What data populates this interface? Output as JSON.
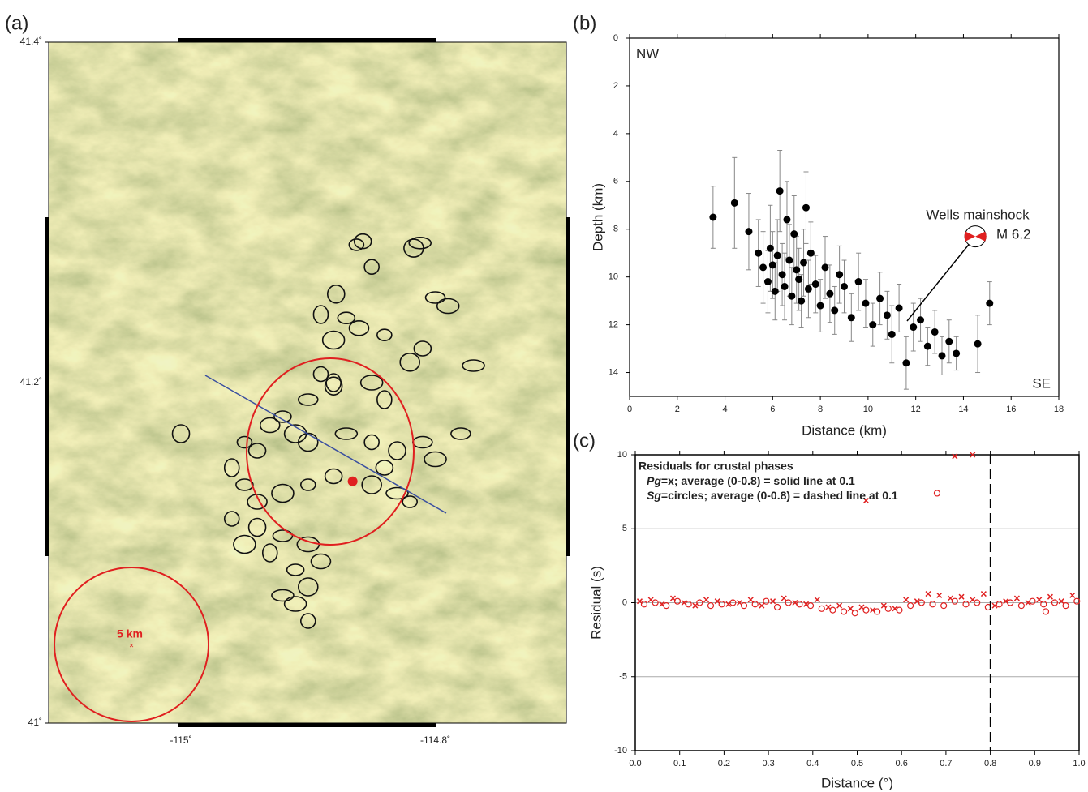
{
  "chart_data": [
    {
      "type": "map",
      "label": "(a)",
      "x": [
        -114.862,
        -114.857,
        -114.817,
        -114.812,
        -114.85,
        -114.878,
        -114.8,
        -114.79,
        -114.89,
        -114.87,
        -114.86,
        -114.88,
        -114.84,
        -114.81,
        -114.82,
        -114.77,
        -114.89,
        -114.88,
        -114.9,
        -114.85,
        -114.84,
        -114.92,
        -114.93,
        -114.91,
        -114.95,
        -114.94,
        -114.9,
        -114.87,
        -114.85,
        -114.83,
        -114.81,
        -114.8,
        -114.96,
        -114.95,
        -114.94,
        -114.92,
        -114.9,
        -114.88,
        -114.85,
        -114.83,
        -114.96,
        -114.94,
        -114.92,
        -114.9,
        -114.93,
        -114.91,
        -114.89,
        -114.95,
        -114.82,
        -114.84,
        -114.9,
        -114.92,
        -114.9,
        -115.0,
        -114.78,
        -114.91,
        -114.88
      ],
      "y": [
        41.281,
        41.283,
        41.279,
        41.282,
        41.268,
        41.252,
        41.25,
        41.245,
        41.24,
        41.238,
        41.232,
        41.225,
        41.228,
        41.22,
        41.212,
        41.21,
        41.205,
        41.198,
        41.19,
        41.2,
        41.19,
        41.18,
        41.175,
        41.17,
        41.165,
        41.16,
        41.165,
        41.17,
        41.165,
        41.16,
        41.165,
        41.155,
        41.15,
        41.14,
        41.13,
        41.135,
        41.14,
        41.145,
        41.14,
        41.135,
        41.12,
        41.115,
        41.11,
        41.105,
        41.1,
        41.09,
        41.095,
        41.105,
        41.13,
        41.15,
        41.08,
        41.075,
        41.06,
        41.17,
        41.17,
        41.07,
        41.2
      ],
      "color": "#111111",
      "highlight": {
        "x": -114.865,
        "y": 41.142
      },
      "highlight_color": "#e02020",
      "annotation": "5 km",
      "xlim": [
        -115.104,
        -114.697
      ],
      "ylim": [
        41,
        41.4
      ],
      "xticks": [
        {
          "value": -115,
          "label": "-115˚"
        },
        {
          "value": -114.8,
          "label": "-114.8˚"
        }
      ],
      "yticks": [
        {
          "value": 41,
          "label": "41˚"
        },
        {
          "value": 41.2,
          "label": "41.2˚"
        },
        {
          "value": 41.4,
          "label": "41.4˚"
        }
      ]
    },
    {
      "type": "errorbar",
      "label": "(b)",
      "x": [
        3.5,
        4.4,
        5.0,
        5.4,
        5.6,
        5.8,
        5.9,
        6.0,
        6.1,
        6.2,
        6.3,
        6.4,
        6.5,
        6.6,
        6.7,
        6.8,
        6.9,
        7.0,
        7.1,
        7.2,
        7.3,
        7.4,
        7.5,
        7.6,
        7.8,
        8.0,
        8.2,
        8.4,
        8.6,
        8.8,
        9.0,
        9.3,
        9.6,
        9.9,
        10.2,
        10.5,
        10.8,
        11.0,
        11.3,
        11.6,
        11.9,
        12.2,
        12.5,
        12.8,
        13.1,
        13.4,
        13.7,
        14.6,
        15.1
      ],
      "values": [
        7.5,
        6.9,
        8.1,
        9.0,
        9.6,
        10.2,
        8.8,
        9.5,
        10.6,
        9.1,
        6.4,
        9.9,
        10.4,
        7.6,
        9.3,
        10.8,
        8.2,
        9.7,
        10.1,
        11.0,
        9.4,
        7.1,
        10.5,
        9.0,
        10.3,
        11.2,
        9.6,
        10.7,
        11.4,
        9.9,
        10.4,
        11.7,
        10.2,
        11.1,
        12.0,
        10.9,
        11.6,
        12.4,
        11.3,
        13.6,
        12.1,
        11.8,
        12.9,
        12.3,
        13.3,
        12.7,
        13.2,
        12.8,
        11.1
      ],
      "errors": [
        1.3,
        1.9,
        1.6,
        1.4,
        1.5,
        1.3,
        1.8,
        1.4,
        1.2,
        1.5,
        1.7,
        1.3,
        1.4,
        1.6,
        1.5,
        1.2,
        1.6,
        1.4,
        1.3,
        1.1,
        1.4,
        1.5,
        1.2,
        1.3,
        1.2,
        1.1,
        1.3,
        1.2,
        1.0,
        1.2,
        1.1,
        1.0,
        1.2,
        1.0,
        0.9,
        1.1,
        1.0,
        1.2,
        1.0,
        1.1,
        1.0,
        0.9,
        0.8,
        0.9,
        0.8,
        0.9,
        0.7,
        1.2,
        0.9
      ],
      "color": "#000000",
      "highlight": {
        "x": 14.5,
        "y": 8.3
      },
      "highlight_color": "#e02020",
      "invert_y": true,
      "xlim": [
        0,
        18
      ],
      "ylim": [
        0,
        15
      ],
      "xticks": [
        0,
        2,
        4,
        6,
        8,
        10,
        12,
        14,
        16,
        18
      ],
      "yticks": [
        0,
        2,
        4,
        6,
        8,
        10,
        12,
        14
      ],
      "xlabel": "Distance (km)",
      "ylabel": "Depth (km)",
      "annotations": [
        "NW",
        "SE",
        "Wells mainshock",
        "M 6.2"
      ]
    },
    {
      "type": "scatter",
      "label": "(c)",
      "title": "Residuals for crustal phases",
      "series": [
        {
          "name": "Pg",
          "marker": "x",
          "color": "#e02020",
          "legend_text": "=x; average (0-0.8) = solid line at 0.1",
          "x": [
            0.01,
            0.035,
            0.06,
            0.085,
            0.11,
            0.135,
            0.16,
            0.185,
            0.21,
            0.235,
            0.26,
            0.285,
            0.31,
            0.335,
            0.36,
            0.385,
            0.41,
            0.435,
            0.46,
            0.485,
            0.51,
            0.535,
            0.56,
            0.585,
            0.61,
            0.635,
            0.66,
            0.685,
            0.71,
            0.735,
            0.76,
            0.785,
            0.81,
            0.835,
            0.86,
            0.885,
            0.91,
            0.935,
            0.96,
            0.985,
            0.52,
            0.72,
            0.76
          ],
          "values": [
            0.1,
            0.2,
            -0.1,
            0.3,
            0.0,
            -0.2,
            0.2,
            0.1,
            -0.1,
            0.0,
            0.2,
            -0.2,
            0.1,
            0.3,
            0.0,
            -0.1,
            0.2,
            -0.3,
            -0.2,
            -0.4,
            -0.3,
            -0.5,
            -0.2,
            -0.4,
            0.2,
            0.1,
            0.6,
            0.5,
            0.3,
            0.4,
            0.2,
            0.6,
            -0.2,
            0.1,
            0.3,
            0.0,
            0.2,
            0.4,
            0.1,
            0.5,
            6.9,
            9.9,
            10.0
          ]
        },
        {
          "name": "Sg",
          "marker": "circle",
          "color": "#e02020",
          "legend_text": "=circles; average (0-0.8) = dashed line at 0.1",
          "x": [
            0.02,
            0.045,
            0.07,
            0.095,
            0.12,
            0.145,
            0.17,
            0.195,
            0.22,
            0.245,
            0.27,
            0.295,
            0.32,
            0.345,
            0.37,
            0.395,
            0.42,
            0.445,
            0.47,
            0.495,
            0.52,
            0.545,
            0.57,
            0.595,
            0.62,
            0.645,
            0.67,
            0.695,
            0.72,
            0.745,
            0.77,
            0.795,
            0.82,
            0.845,
            0.87,
            0.895,
            0.92,
            0.945,
            0.97,
            0.995,
            0.68,
            0.925
          ],
          "values": [
            -0.1,
            0.0,
            -0.2,
            0.1,
            -0.1,
            0.0,
            -0.2,
            -0.1,
            0.0,
            -0.2,
            -0.1,
            0.1,
            -0.3,
            0.0,
            -0.1,
            -0.2,
            -0.4,
            -0.5,
            -0.6,
            -0.7,
            -0.5,
            -0.6,
            -0.4,
            -0.5,
            -0.2,
            0.0,
            -0.1,
            -0.2,
            0.1,
            -0.1,
            0.0,
            -0.3,
            -0.1,
            0.0,
            -0.2,
            0.1,
            -0.1,
            0.0,
            -0.2,
            0.1,
            7.4,
            -0.6
          ]
        }
      ],
      "vline": 0.8,
      "grid": true,
      "xlim": [
        0,
        1
      ],
      "ylim": [
        -10,
        10
      ],
      "xticks": [
        {
          "value": 0,
          "label": "0.0"
        },
        0.1,
        0.2,
        0.3,
        0.4,
        0.5,
        0.6,
        0.7,
        0.8,
        0.9,
        {
          "value": 1,
          "label": "1.0"
        }
      ],
      "yticks": [
        -10,
        -5,
        0,
        5,
        10
      ],
      "xlabel": "Distance (°)",
      "ylabel": "Residual (s)"
    }
  ]
}
